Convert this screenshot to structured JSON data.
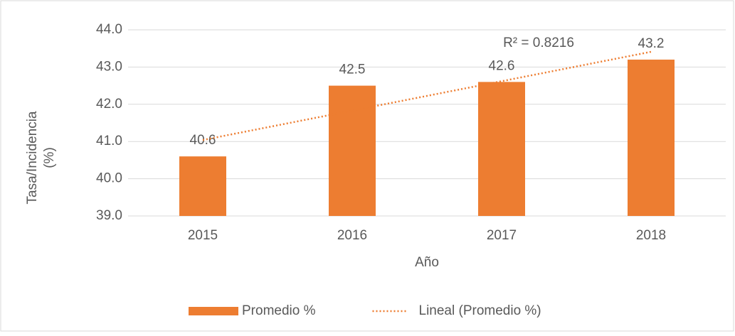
{
  "chart_data": {
    "type": "bar",
    "categories": [
      "2015",
      "2016",
      "2017",
      "2018"
    ],
    "series": [
      {
        "name": "Promedio %",
        "color": "#ed7d31",
        "values": [
          40.6,
          42.5,
          42.6,
          43.2
        ]
      },
      {
        "name": "Lineal (Promedio %)",
        "color": "#ed7d31",
        "kind": "trendline",
        "values": [
          41.04,
          41.83,
          42.62,
          43.41
        ]
      }
    ],
    "annotation": "R² = 0.8216",
    "xlabel": "Año",
    "ylabel": [
      "Tasa/Incidencia",
      "(%)"
    ],
    "ylim": [
      39,
      44
    ],
    "yticks": [
      {
        "value": 39,
        "label": "39.0"
      },
      {
        "value": 40,
        "label": "40.0"
      },
      {
        "value": 41,
        "label": "41.0"
      },
      {
        "value": 42,
        "label": "42.0"
      },
      {
        "value": 43,
        "label": "43.0"
      },
      {
        "value": 44,
        "label": "44.0"
      }
    ],
    "grid": true,
    "legend": "bottom"
  }
}
